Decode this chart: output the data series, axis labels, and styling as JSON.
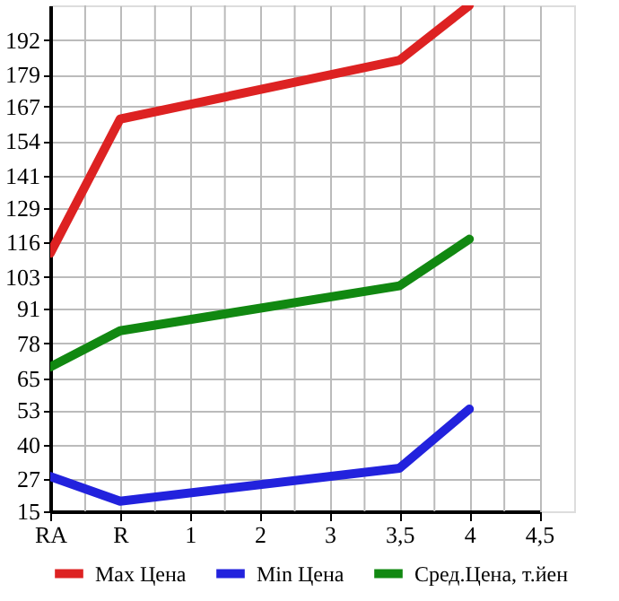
{
  "chart_data": {
    "type": "line",
    "categories": [
      "RA",
      "R",
      "1",
      "2",
      "3",
      "3,5",
      "4",
      "4,5"
    ],
    "series": [
      {
        "name": "Max Цена",
        "color": "#dd2222",
        "values": [
          111.9,
          162.3,
          null,
          null,
          null,
          184.4,
          205,
          null
        ]
      },
      {
        "name": "Min Цена",
        "color": "#2222dd",
        "values": [
          28.1,
          18.8,
          null,
          null,
          null,
          31.2,
          53.4,
          null
        ]
      },
      {
        "name": "Сред.Цена, т.йен",
        "color": "#118811",
        "values": [
          69.2,
          82.8,
          null,
          null,
          null,
          99.7,
          117.2,
          null
        ]
      }
    ],
    "ylim": [
      15,
      205
    ],
    "yticks": [
      15,
      27,
      40,
      53,
      65,
      78,
      91,
      103,
      116,
      129,
      141,
      154,
      167,
      179,
      192
    ],
    "grid": true,
    "legend": "bottom",
    "marker": "none",
    "line_style": "solid"
  }
}
